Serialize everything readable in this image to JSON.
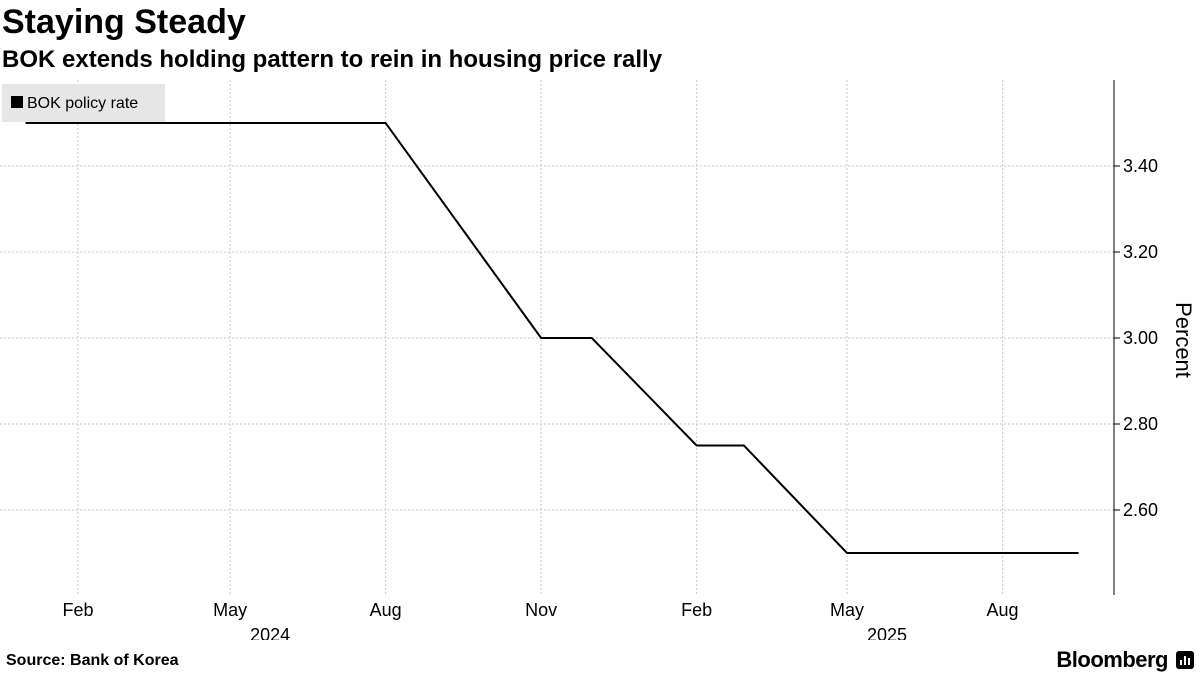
{
  "header": {
    "title": "Staying Steady",
    "subtitle": "BOK extends holding pattern to rein in housing price rally"
  },
  "footer": {
    "source": "Source:  Bank of Korea",
    "brand": "Bloomberg",
    "brand_icon": "bloomberg-chart-icon"
  },
  "colors": {
    "line": "#000000",
    "grid": "#c8c8c8",
    "legend_bg": "#e6e6e6"
  },
  "chart_data": {
    "type": "line",
    "title": "Staying Steady",
    "subtitle": "BOK extends holding pattern to rein in housing price rally",
    "xlabel": "",
    "ylabel": "Percent",
    "ylim": [
      2.4,
      3.6
    ],
    "xlim": [
      "2024-01-01",
      "2025-09-30"
    ],
    "yticks": [
      2.6,
      2.8,
      3.0,
      3.2,
      3.4
    ],
    "ytick_labels": [
      "2.60",
      "2.80",
      "3.00",
      "3.20",
      "3.40"
    ],
    "y_axis_side": "right",
    "xticks": [
      {
        "date": "2024-02-01",
        "label": "Feb",
        "year_label": ""
      },
      {
        "date": "2024-05-01",
        "label": "May",
        "year_label": "2024"
      },
      {
        "date": "2024-08-01",
        "label": "Aug",
        "year_label": ""
      },
      {
        "date": "2024-11-01",
        "label": "Nov",
        "year_label": ""
      },
      {
        "date": "2025-02-01",
        "label": "Feb",
        "year_label": ""
      },
      {
        "date": "2025-05-01",
        "label": "May",
        "year_label": "2025"
      },
      {
        "date": "2025-08-01",
        "label": "Aug",
        "year_label": ""
      }
    ],
    "grid": true,
    "legend": {
      "position": "top-left",
      "entries": [
        "BOK policy rate"
      ]
    },
    "series": [
      {
        "name": "BOK policy rate",
        "color": "#000000",
        "x": [
          "2024-01-01",
          "2024-08-01",
          "2024-11-01",
          "2024-12-01",
          "2025-02-01",
          "2025-03-01",
          "2025-05-01",
          "2025-09-15"
        ],
        "values": [
          3.5,
          3.5,
          3.0,
          3.0,
          2.75,
          2.75,
          2.5,
          2.5
        ]
      }
    ]
  }
}
